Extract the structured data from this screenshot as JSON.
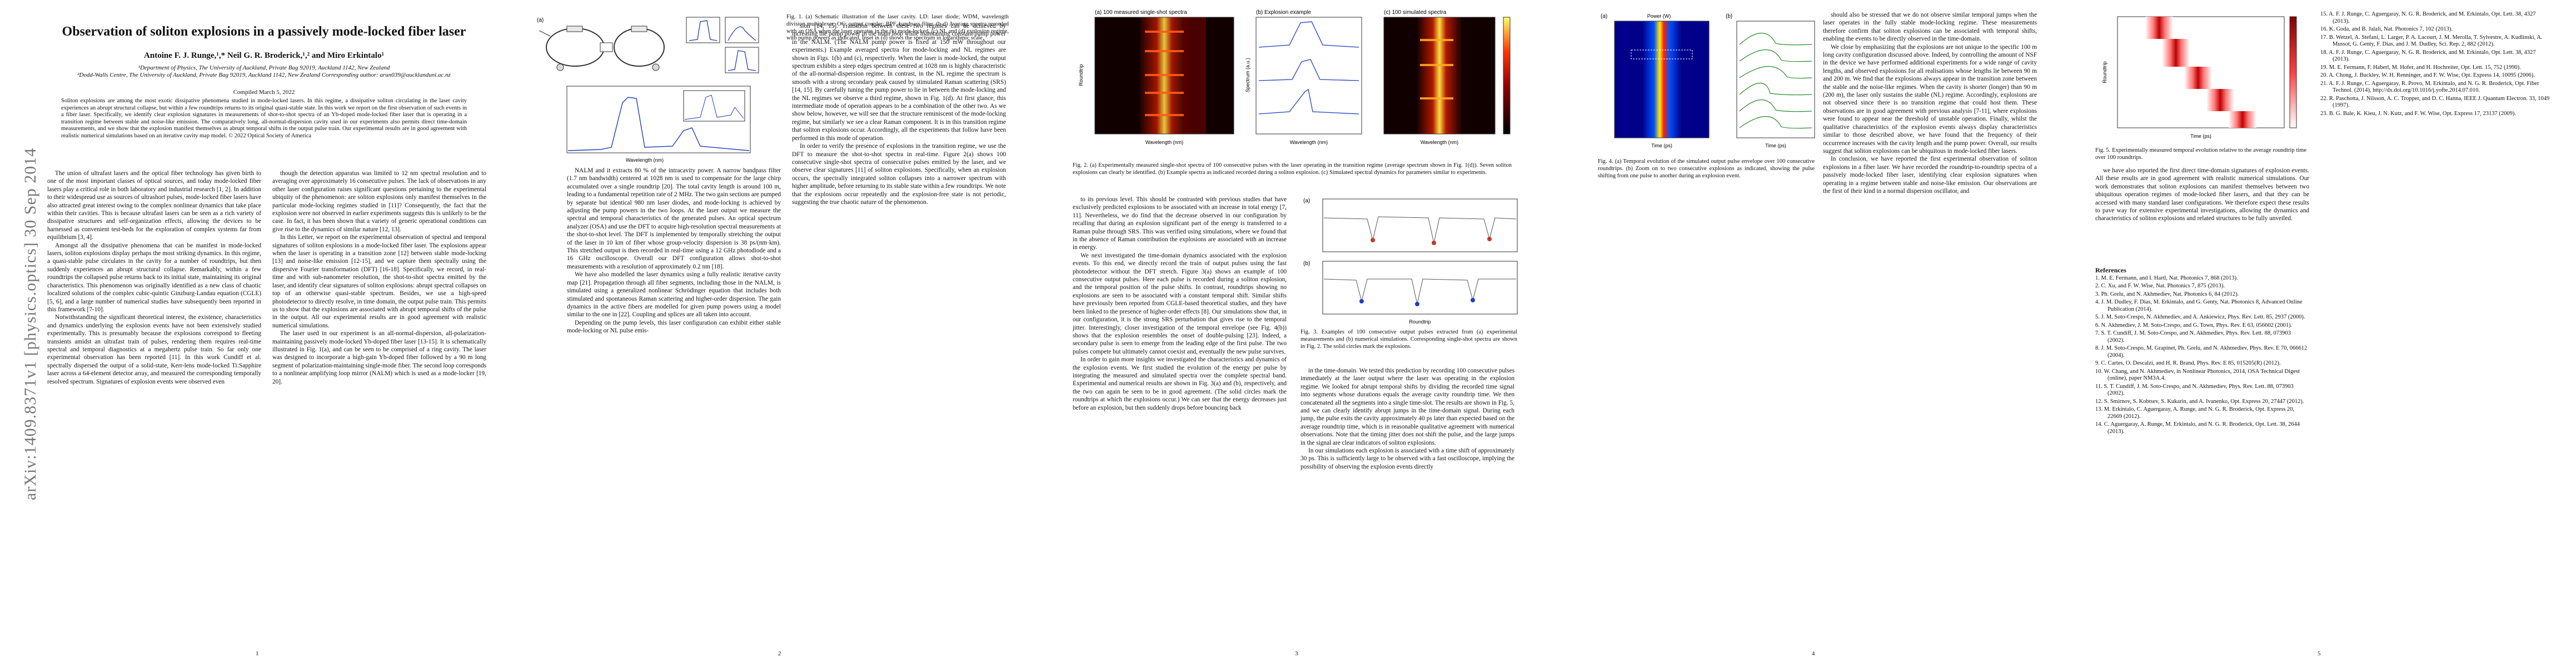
{
  "arxiv_stamp": "arXiv:1409.8371v1  [physics.optics]  30 Sep 2014",
  "title": "Observation of soliton explosions in a passively mode-locked fiber laser",
  "authors": "Antoine F. J. Runge,¹,* Neil G. R. Broderick,¹,² and Miro Erkintalo¹",
  "affiliations": "¹Department of Physics, The University of Auckland, Private Bag 92019, Auckland 1142, New Zealand\n²Dodd-Walls Centre, The University of Auckland, Private Bag 92019, Auckland 1142, New Zealand Corresponding author: arun039@aucklanduni.ac.nz",
  "compiled": "Compiled March 5, 2022",
  "abstract": "Soliton explosions are among the most exotic dissipative phenomena studied in mode-locked lasers. In this regime, a dissipative soliton circulating in the laser cavity experiences an abrupt structural collapse, but within a few roundtrips returns to its original quasi-stable state. In this work we report on the first observation of such events in a fiber laser. Specifically, we identify clear explosion signatures in measurements of shot-to-shot spectra of an Yb-doped mode-locked fiber laser that is operating in a transition regime between stable and noise-like emission. The comparatively long, all-normal-dispersion cavity used in our experiments also permits direct time-domain measurements, and we show that the explosion manifest themselves as abrupt temporal shifts in the output pulse train. Our experimental results are in good agreement with realistic numerical simulations based on an iterative cavity map model. © 2022 Optical Society of America",
  "p1_col1": [
    "The union of ultrafast lasers and the optical fiber technology has given birth to one of the most important classes of optical sources, and today mode-locked fiber lasers play a critical role in both laboratory and industrial research [1, 2]. In addition to their widespread use as sources of ultrashort pulses, mode-locked fiber lasers have also attracted great interest owing to the complex nonlinear dynamics that take place within their cavities. This is because ultrafast lasers can be seen as a rich variety of dissipative structures and self-organization effects, allowing the devices to be harnessed as convenient test-beds for the exploration of complex systems far from equilibrium [3, 4].",
    "Amongst all the dissipative phenomena that can be manifest in mode-locked lasers, soliton explosions display perhaps the most striking dynamics. In this regime, a quasi-stable pulse circulates in the cavity for a number of roundtrips, but then suddenly experiences an abrupt structural collapse. Remarkably, within a few roundtrips the collapsed pulse returns back to its initial state, maintaining its original characteristics. This phenomenon was originally identified as a new class of chaotic localized solutions of the complex cubic-quintic Ginzburg-Landau equation (CGLE) [5, 6], and a large number of numerical studies have subsequently been reported in this framework [7-10].",
    "Notwithstanding the significant theoretical interest, the existence, characteristics and dynamics underlying the explosion events have not been extensively studied experimentally. This is presumably because the explosions correspond to fleeting transients amidst an ultrafast train of pulses, rendering them requires real-time spectral and temporal diagnostics at a megahertz pulse train. So far only one experimental observation has been reported [11]. In this work Cundiff et al. spectrally dispersed the output of a solid-state, Kerr-lens mode-locked Ti:Sapphire laser across a 64-element detector array, and measured the corresponding temporally resolved spectrum. Signatures of explosion events were observed even"
  ],
  "p1_col2": [
    "though the detection apparatus was limited to 12 nm spectral resolution and to averaging over approximately 16 consecutive pulses. The lack of observations in any other laser configuration raises significant questions pertaining to the experimental ubiquity of the phenomenon: are soliton explosions only manifest themselves in the particular mode-locking regimes studied in [11]? Consequently, the fact that the explosion were not observed in earlier experiments suggests this is unlikely to be the case. In fact, it has been shown that a variety of generic operational conditions can give rise to the dynamics of similar nature [12, 13].",
    "In this Letter, we report on the experimental observation of spectral and temporal signatures of soliton explosions in a mode-locked fiber laser. The explosions appear when the laser is operating in a transition zone [12] between stable mode-locking [13] and noise-like emission [12-15], and we capture them spectrally using the dispersive Fourier transformation (DFT) [16-18]. Specifically, we record, in real-time and with sub-nanometer resolution, the shot-to-shot spectra emitted by the laser, and identify clear signatures of soliton explosions: abrupt spectral collapses on top of an otherwise quasi-stable spectrum. Besides, we use a high-speed photodetector to directly resolve, in time domain, the output pulse train. This permits us to show that the explosions are associated with abrupt temporal shifts of the pulse in the output. All our experimental results are in good agreement with realistic numerical simulations.",
    "The laser used in our experiment is an all-normal-dispersion, all-polarization-maintaining passively mode-locked Yb-doped fiber laser [13-15]. It is schematically illustrated in Fig. 1(a), and can be seen to be comprised of a ring cavity. The laser was designed to incorporate a high-gain Yb-doped fiber followed by a 90 m long segment of polarization-maintaining single-mode fiber. The second loop corresponds to a nonlinear amplifying loop mirror (NALM) which is used as a mode-locker [19, 20]."
  ],
  "p2_col1": [
    "NALM and it extracts 80 % of the intracavity power. A narrow bandpass filter (1.7 nm bandwidth) centered at 1028 nm is used to compensate for the large chirp accumulated over a single roundtrip [20]. The total cavity length is around 100 m, leading to a fundamental repetition rate of 2 MHz. The two gain sections are pumped by separate but identical 980 nm laser diodes, and mode-locking is achieved by adjusting the pump powers in the two loops. At the laser output we measure the spectral and temporal characteristics of the generated pulses. An optical spectrum analyzer (OSA) and use the DFT to acquire high-resolution spectral measurements at the shot-to-shot level. The DFT is implemented by temporally stretching the output of the laser in 10 km of fiber whose group-velocity dispersion is 38 ps/(nm·km). This stretched output is then recorded in real-time using a 12 GHz photodiode and a 16 GHz oscilloscope. Overall our DFT configuration allows shot-to-shot measurements with a resolution of approximately 0.2 nm [18].",
    "We have also modelled the laser dynamics using a fully realistic iterative cavity map [21]. Propagation through all fiber segments, including those in the NALM, is simulated using a generalized nonlinear Schrödinger equation that includes both stimulated and spontaneous Raman scattering and higher-order dispersion. The gain dynamics in the active fibers are modelled for given pump powers using a model similar to the one in [22]. Coupling and splices are all taken into account.",
    "Depending on the pump levels, this laser configuration can exhibit either stable mode-locking or NL pulse emis-"
  ],
  "p2_col2": [
    "sion [14, 15]. Transition between these two regimes can be achieved by increasing the pump power in the main loop while maintaining constant pump power in the NALM. (The NALM pump power is fixed at 150 mW throughout our experiments.) Example averaged spectra for mode-locking and NL regimes are shown in Figs. 1(b) and (c), respectively. When the laser is mode-locked, the output spectrum exhibits a steep edges spectrum centred at 1028 nm is highly characteristic of the all-normal-dispersion regime. In contrast, in the NL regime the spectrum is smooth with a strong secondary peak caused by stimulated Raman scattering (SRS) [14, 15]. By carefully tuning the pump power to lie in between the mode-locking and the NL regimes we observe a third regime, shown in Fig. 1(d). At first glance, this intermediate mode of operation appears to be a combination of the other two. As we show below, however, we will see that the structure reminiscent of the mode-locking regime, but similarly we see a clear Raman component. It is in this transition regime that soliton explosions occur. Accordingly, all the experiments that follow have been performed in this mode of operation.",
    "In order to verify the presence of explosions in the transition regime, we use the DFT to measure the shot-to-shot spectra in real-time. Figure 2(a) shows 100 consecutive single-shot spectra of consecutive pulses emitted by the laser, and we observe clear signatures [11] of soliton explosions. Specifically, when an explosion occurs, the spectrally integrated soliton collapses into a narrower spectrum with higher amplitude, before returning to its stable state within a few roundtrips. We note that the explosions occur repeatedly and the explosion-free state is not periodic, suggesting the true chaotic nature of the phenomenon."
  ],
  "fig1_caption": "Fig. 1. (a) Schematic illustration of the laser cavity. LD: laser diode; WDM, wavelength division multiplexer; OC: output coupler; BPF, bandpass filter. (b-d) Average spectra recorded with an OSA when the laser operates in the (b) mode-locked, (c) NL and (d) explosion regime, with pump powers as indicated. Inset in (d) shows the spectrum in logarithmic scale.",
  "fig2_caption": "Fig. 2. (a) Experimentally measured single-shot spectra of 100 consecutive pulses with the laser operating in the transition regime (average spectrum shown in Fig. 1(d)). Seven soliton explosions can clearly be identified. (b) Example spectra as indicated recorded during a soliton explosion. (c) Simulated spectral dynamics for parameters similar to experiments.",
  "fig3_caption": "Fig. 3. Examples of 100 consecutive output pulses extracted from (a) experimental measurements and (b) numerical simulations. Corresponding single-shot spectra are shown in Fig. 2. The solid circles mark the explosions.",
  "fig4_caption": "Fig. 4. (a) Temporal evolution of the simulated output pulse envelope over 100 consecutive roundtrips. (b) Zoom on to two consecutive explosions as indicated, showing the pulse shifting from one pulse to another during an explosion event.",
  "fig5_caption": "Fig. 5. Experimentally measured temporal evolution relative to the average roundtrip time over 100 roundtrips.",
  "p3_col1": [
    "to its previous level. This should be contrasted with previous studies that have exclusively predicted explosions to be associated with an increase in total energy [7, 11]. Nevertheless, we do find that the decrease observed in our configuration by recalling that during an explosion significant part of the energy is transferred to a Raman pulse through SRS. This was verified using simulations, where we found that in the absence of Raman contribution the explosions are associated with an increase in energy.",
    "We next investigated the time-domain dynamics associated with the explosion events. To this end, we directly record the train of output pulses using the fast photodetector without the DFT stretch. Figure 3(a) shows an example of 100 consecutive output pulses. Here each pulse is recorded during a soliton explosion, and the temporal position of the pulse shifts. In contrast, roundtrips showing no explosions are seen to be associated with a constant temporal shift. Similar shifts have previously been reported from CGLE-based theoretical studies, and they have been linked to the presence of higher-order effects [8]. Our simulations show that, in our configuration, it is the strong SRS perturbation that gives rise to the temporal jitter. Interestingly, closer investigation of the temporal envelope (see Fig. 4(b)) shows that the explosion resembles the onset of double-pulsing [23]. Indeed, a secondary pulse is seen to emerge from the leading edge of the first pulse. The two pulses compete but ultimately cannot coexist and, eventually the new pulse survives.",
    "In order to gain more insights we investigated the characteristics and dynamics of the explosion events. We first studied the evolution of the energy per pulse by integrating the measured and simulated spectra over the complete spectral band. Experimental and numerical results are shown in Fig. 3(a) and (b), respectively, and the two can again be seen to be in good agreement. (The solid circles mark the roundtrips at which the explosions occur.) We can see that the energy decreases just before an explosion, but then suddenly drops before bouncing back"
  ],
  "p3_col2": [
    "in the time-domain. We tested this prediction by recording 100 consecutive pulses immediately at the laser output where the laser was operating in the explosion regime. We looked for abrupt temporal shifts by dividing the recorded time signal into segments whose durations equals the average cavity roundtrip time. We then concatenated all the segments into a single time-slot. The results are shown in Fig. 5, and we can clearly identify abrupt jumps in the time-domain signal. During each jump, the pulse exits the cavity approximately 40 ps later than expected based on the average roundtrip time, which is in reasonable qualitative agreement with numerical observations. Note that the timing jitter does not shift the pulse, and the large jumps in the signal are clear indicators of soliton explosions.",
    "In our simulations each explosion is associated with a time shift of approximately 30 ps. This is sufficiently large to be observed with a fast oscilloscope, implying the possibility of observing the explosion events directly"
  ],
  "p4_col1": [
    "should also be stressed that we do not observe similar temporal jumps when the laser operates in the fully stable mode-locking regime. These measurements therefore confirm that soliton explosions can be associated with temporal shifts, enabling the events to be directly observed in the time-domain.",
    "We close by emphasizing that the explosions are not unique to the specific 100 m long cavity configuration discussed above. Indeed, by controlling the amount of NSF in the device we have performed additional experiments for a wide range of cavity lengths, and observed explosions for all realisations whose lengths lie between 90 m and 200 m. We find that the explosions always appear in the transition zone between the stable and the noise-like regimes. When the cavity is shorter (longer) than 90 m (200 m), the laser only sustains the stable (NL) regime. Accordingly, explosions are not observed since there is no transition regime that could host them. These observations are in good agreement with previous analysis [7-11], where explosions were found to appear near the threshold of unstable operation. Finally, whilst the qualitative characteristics of the explosion events always display characteristics similar to those described above, we have found that the frequency of their occurrence increases with the cavity length and the pump power. Overall, our results suggest that soliton explosions can be ubiquitous in mode-locked fiber lasers.",
    "In conclusion, we have reported the first experimental observation of soliton explosions in a fiber laser. We have recorded the roundtrip-to-roundtrip spectra of a passively mode-locked fiber laser, identifying clear explosion signatures when operating in a regime between stable and noise-like emission. Our observations are the first of their kind in a normal dispersion oscillator, and"
  ],
  "p4_col2": [
    "we have also reported the first direct time-domain signatures of explosion events. All these results are in good agreement with realistic numerical simulations. Our work demonstrates that soliton explosions can manifest themselves between two ubiquitous operation regimes of mode-locked fiber lasers, and that they can be accessed with many standard laser configurations. We therefore expect these results to pave way for extensive experimental investigations, allowing the dynamics and characteristics of soliton explosions and related structures to be fully unveiled."
  ],
  "references_heading": "References",
  "references": [
    "1. M. E. Fermann, and I. Hartl, Nat. Photonics 7, 868 (2013).",
    "2. C. Xu, and F. W. Wise, Nat. Photonics 7, 875 (2013).",
    "3. Ph. Grelu, and N. Akhmediev, Nat. Photonics 6, 84 (2012).",
    "4. J. M. Dudley, F. Dias, M. Erkintalo, and G. Genty, Nat. Photonics 8, Advanced Online Publication (2014).",
    "5. J. M. Soto-Crespo, N. Akhmediev, and A. Ankiewicz, Phys. Rev. Lett. 85, 2937 (2000).",
    "6. N. Akhmediev, J. M. Soto-Crespo, and G. Town, Phys. Rev. E 63, 056602 (2001).",
    "7. S. T. Cundiff, J. M. Soto-Crespo, and N. Akhmediev, Phys. Rev. Lett. 88, 073903 (2002).",
    "8. J. M. Soto-Crespo, M. Grapinet, Ph. Grelu, and N. Akhmediev, Phys. Rev. E 70, 066612 (2004).",
    "9. C. Cartes, O. Descalzi, and H. R. Brand, Phys. Rev. E 85, 015205(R) (2012).",
    "10. W. Chang, and N. Akhmediev, in Nonlinear Photonics, 2014, OSA Technical Digest (online), paper NM3A.4.",
    "11. S. T. Cundiff, J. M. Soto-Crespo, and N. Akhmediev, Phys. Rev. Lett. 88, 073903 (2002).",
    "12. S. Smirnov, S. Kobtsev, S. Kukarin, and A. Ivanenko, Opt. Express 20, 27447 (2012).",
    "13. M. Erkintalo, C. Aguergaray, A. Runge, and N. G. R. Broderick, Opt. Express 20, 22669 (2012).",
    "14. C. Aguergaray, A. Runge, M. Erkintalo, and N. G. R. Broderick, Opt. Lett. 38, 2644 (2013)."
  ],
  "references_p5": [
    "15. A. F. J. Runge, C. Aguergaray, N. G. R. Broderick, and M. Erkintalo, Opt. Lett. 38, 4327 (2013).",
    "16. K. Goda, and B. Jalali, Nat. Photonics 7, 102 (2013).",
    "17. B. Wetzel, A. Stefani, L. Larger, P. A. Lacourt, J. M. Merolla, T. Sylvestre, A. Kudlinski, A. Mussot, G. Genty, F. Dias, and J. M. Dudley, Sci. Rep. 2, 882 (2012).",
    "18. A. F. J. Runge, C. Aguergaray, N. G. R. Broderick, and M. Erkintalo, Opt. Lett. 38, 4327 (2013).",
    "19. M. E. Fermann, F. Haberl, M. Hofer, and H. Hochreiter, Opt. Lett. 15, 752 (1990).",
    "20. A. Chong, J. Buckley, W. H. Renninger, and F. W. Wise, Opt. Express 14, 10095 (2006).",
    "21. A. F. J. Runge, C. Aguergaray, R. Provo, M. Erkintalo, and N. G. R. Broderick, Opt. Fiber Technol. (2014), http://dx.doi.org/10.1016/j.yofte.2014.07.010.",
    "22. R. Paschotta, J. Nilsson, A. C. Tropper, and D. C. Hanna, IEEE J. Quantum Electron. 33, 1049 (1997).",
    "23. B. G. Bale, K. Kieu, J. N. Kutz, and F. W. Wise, Opt. Express 17, 23137 (2009)."
  ],
  "page_numbers": [
    "1",
    "2",
    "3",
    "4",
    "5"
  ],
  "fig_labels": {
    "f2a_title": "(a) 100 measured single-shot spectra",
    "f2b_title": "(b) Explosion example",
    "f2c_title": "(c) 100 simulated spectra",
    "wavelength": "Wavelength (nm)",
    "roundtrip": "Roundtrip",
    "spectrum_au": "Spectrum (a.u.)",
    "power_w": "Power (W)",
    "time_ps": "Time (ps)",
    "intensity": "Intensity (dB)",
    "energy": "Energy (a.u.)"
  },
  "colors": {
    "hot_map_bg": "#000000",
    "hot_low": "#5a0000",
    "hot_mid": "#ff2200",
    "hot_high": "#ffff40",
    "jet_bg": "#00008b",
    "line_blue": "#1f3fbf",
    "marker_red": "#c0392b",
    "green_trace": "#2a8a2a"
  }
}
